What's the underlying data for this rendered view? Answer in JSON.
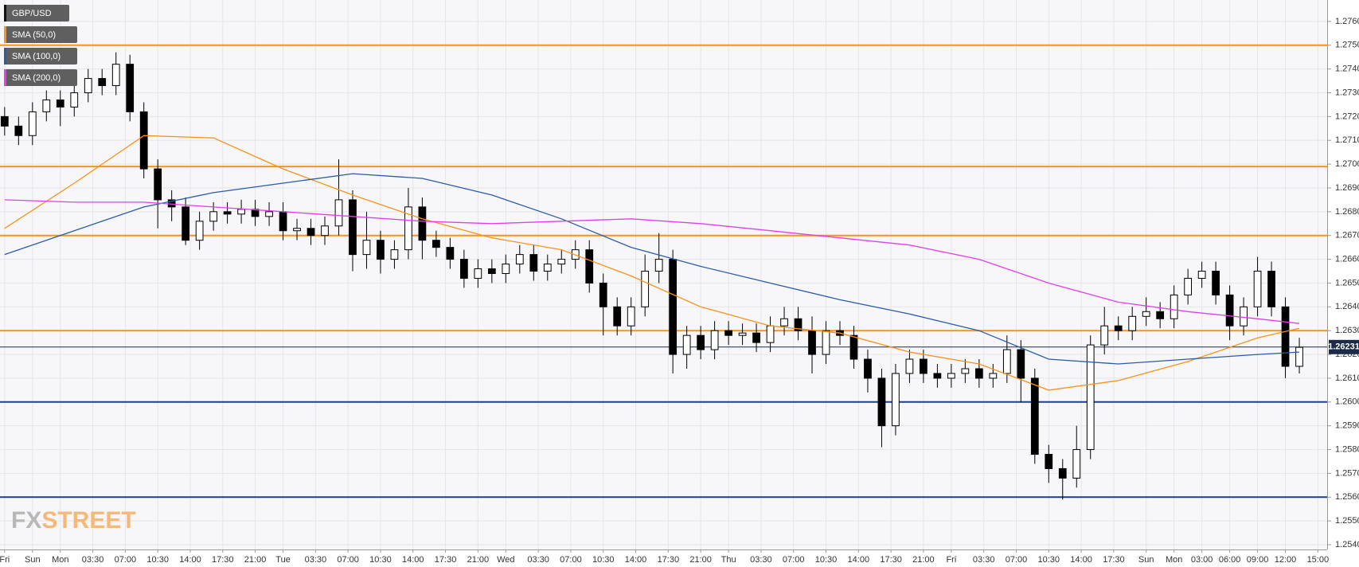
{
  "chart_data": {
    "type": "candlestick",
    "xlim": [
      -1,
      285
    ],
    "ylim": [
      1.2538,
      1.2769
    ],
    "grid": true,
    "xticks": [
      {
        "value": 0,
        "label": "Fri"
      },
      {
        "value": 6,
        "label": "Sun"
      },
      {
        "value": 12,
        "label": "Mon"
      },
      {
        "value": 19,
        "label": "03:30"
      },
      {
        "value": 26,
        "label": "07:00"
      },
      {
        "value": 33,
        "label": "10:30"
      },
      {
        "value": 40,
        "label": "14:00"
      },
      {
        "value": 47,
        "label": "17:30"
      },
      {
        "value": 54,
        "label": "21:00"
      },
      {
        "value": 60,
        "label": "Tue"
      },
      {
        "value": 67,
        "label": "03:30"
      },
      {
        "value": 74,
        "label": "07:00"
      },
      {
        "value": 81,
        "label": "10:30"
      },
      {
        "value": 88,
        "label": "14:00"
      },
      {
        "value": 95,
        "label": "17:30"
      },
      {
        "value": 102,
        "label": "21:00"
      },
      {
        "value": 108,
        "label": "Wed"
      },
      {
        "value": 115,
        "label": "03:30"
      },
      {
        "value": 122,
        "label": "07:00"
      },
      {
        "value": 129,
        "label": "10:30"
      },
      {
        "value": 136,
        "label": "14:00"
      },
      {
        "value": 143,
        "label": "17:30"
      },
      {
        "value": 150,
        "label": "21:00"
      },
      {
        "value": 156,
        "label": "Thu"
      },
      {
        "value": 163,
        "label": "03:30"
      },
      {
        "value": 170,
        "label": "07:00"
      },
      {
        "value": 177,
        "label": "10:30"
      },
      {
        "value": 184,
        "label": "14:00"
      },
      {
        "value": 191,
        "label": "17:30"
      },
      {
        "value": 198,
        "label": "21:00"
      },
      {
        "value": 204,
        "label": "Fri"
      },
      {
        "value": 211,
        "label": "03:30"
      },
      {
        "value": 218,
        "label": "07:00"
      },
      {
        "value": 225,
        "label": "10:30"
      },
      {
        "value": 232,
        "label": "14:00"
      },
      {
        "value": 239,
        "label": "17:30"
      },
      {
        "value": 246,
        "label": "Sun"
      },
      {
        "value": 252,
        "label": "Mon"
      },
      {
        "value": 258,
        "label": "03:00"
      },
      {
        "value": 264,
        "label": "06:00"
      },
      {
        "value": 270,
        "label": "09:00"
      },
      {
        "value": 276,
        "label": "12:00"
      },
      {
        "value": 283,
        "label": "15:00"
      }
    ],
    "yticks": [
      {
        "value": 1.254,
        "label": "1.2540"
      },
      {
        "value": 1.255,
        "label": "1.2550"
      },
      {
        "value": 1.256,
        "label": "1.2560"
      },
      {
        "value": 1.257,
        "label": "1.2570"
      },
      {
        "value": 1.258,
        "label": "1.2580"
      },
      {
        "value": 1.259,
        "label": "1.2590"
      },
      {
        "value": 1.26,
        "label": "1.2600"
      },
      {
        "value": 1.261,
        "label": "1.2610"
      },
      {
        "value": 1.262,
        "label": "1.2620"
      },
      {
        "value": 1.263,
        "label": "1.2630"
      },
      {
        "value": 1.264,
        "label": "1.2640"
      },
      {
        "value": 1.265,
        "label": "1.2650"
      },
      {
        "value": 1.266,
        "label": "1.2660"
      },
      {
        "value": 1.267,
        "label": "1.2670"
      },
      {
        "value": 1.268,
        "label": "1.2680"
      },
      {
        "value": 1.269,
        "label": "1.2690"
      },
      {
        "value": 1.27,
        "label": "1.2700"
      },
      {
        "value": 1.271,
        "label": "1.2710"
      },
      {
        "value": 1.272,
        "label": "1.2720"
      },
      {
        "value": 1.273,
        "label": "1.2730"
      },
      {
        "value": 1.274,
        "label": "1.2740"
      },
      {
        "value": 1.275,
        "label": "1.2750"
      },
      {
        "value": 1.276,
        "label": "1.2760"
      }
    ],
    "candles": {
      "name": "GBP/USD",
      "color": "#000000",
      "up_color": "#ffffff",
      "x": [
        0,
        3,
        6,
        9,
        12,
        15,
        18,
        21,
        24,
        27,
        30,
        33,
        36,
        39,
        42,
        45,
        48,
        51,
        54,
        57,
        60,
        63,
        66,
        69,
        72,
        75,
        78,
        81,
        84,
        87,
        90,
        93,
        96,
        99,
        102,
        105,
        108,
        111,
        114,
        117,
        120,
        123,
        126,
        129,
        132,
        135,
        138,
        141,
        144,
        147,
        150,
        153,
        156,
        159,
        162,
        165,
        168,
        171,
        174,
        177,
        180,
        183,
        186,
        189,
        192,
        195,
        198,
        201,
        204,
        207,
        210,
        213,
        216,
        219,
        222,
        225,
        228,
        231,
        234,
        237,
        240,
        243,
        246,
        249,
        252,
        255,
        258,
        261,
        264,
        267,
        270,
        273,
        276,
        279
      ],
      "open": [
        1.272,
        1.2716,
        1.2712,
        1.2722,
        1.2727,
        1.2724,
        1.273,
        1.2736,
        1.2733,
        1.2742,
        1.2722,
        1.2698,
        1.2685,
        1.2682,
        1.2668,
        1.2676,
        1.268,
        1.2679,
        1.2681,
        1.2678,
        1.268,
        1.2672,
        1.2673,
        1.267,
        1.2674,
        1.2685,
        1.2662,
        1.2668,
        1.266,
        1.2664,
        1.2682,
        1.2668,
        1.2665,
        1.266,
        1.2652,
        1.2656,
        1.2654,
        1.2658,
        1.2662,
        1.2655,
        1.2658,
        1.266,
        1.2664,
        1.265,
        1.264,
        1.2632,
        1.264,
        1.2655,
        1.266,
        1.262,
        1.2628,
        1.2622,
        1.263,
        1.2628,
        1.2629,
        1.2625,
        1.2632,
        1.2635,
        1.263,
        1.262,
        1.263,
        1.2628,
        1.2618,
        1.261,
        1.259,
        1.2612,
        1.2618,
        1.2612,
        1.261,
        1.2612,
        1.2614,
        1.261,
        1.2612,
        1.2622,
        1.261,
        1.2578,
        1.2572,
        1.2568,
        1.258,
        1.2624,
        1.2632,
        1.263,
        1.2636,
        1.2638,
        1.2635,
        1.2645,
        1.2652,
        1.2655,
        1.2645,
        1.2632,
        1.264,
        1.2655,
        1.264,
        1.2615
      ],
      "high": [
        1.2724,
        1.272,
        1.2726,
        1.2731,
        1.2731,
        1.2734,
        1.274,
        1.274,
        1.2747,
        1.2746,
        1.2726,
        1.2702,
        1.2689,
        1.2686,
        1.268,
        1.2684,
        1.2684,
        1.2685,
        1.2685,
        1.2684,
        1.2684,
        1.2677,
        1.2677,
        1.2678,
        1.2702,
        1.2689,
        1.268,
        1.2672,
        1.2668,
        1.269,
        1.2686,
        1.2672,
        1.2669,
        1.2664,
        1.266,
        1.266,
        1.2662,
        1.2666,
        1.2666,
        1.2662,
        1.2664,
        1.2668,
        1.2668,
        1.2654,
        1.2644,
        1.2644,
        1.2662,
        1.2671,
        1.2664,
        1.2632,
        1.2632,
        1.2634,
        1.2634,
        1.2633,
        1.2633,
        1.2636,
        1.264,
        1.264,
        1.2636,
        1.2634,
        1.2634,
        1.2632,
        1.2622,
        1.2614,
        1.2616,
        1.2622,
        1.2622,
        1.2616,
        1.2616,
        1.2618,
        1.2618,
        1.2616,
        1.2628,
        1.2626,
        1.2614,
        1.2582,
        1.2576,
        1.259,
        1.2628,
        1.264,
        1.2636,
        1.264,
        1.2644,
        1.2642,
        1.2649,
        1.2656,
        1.2659,
        1.2659,
        1.2649,
        1.2644,
        1.2661,
        1.2659,
        1.2644,
        1.2627
      ],
      "low": [
        1.2712,
        1.2708,
        1.2708,
        1.2718,
        1.2716,
        1.272,
        1.2726,
        1.2729,
        1.2729,
        1.2718,
        1.2694,
        1.2673,
        1.2676,
        1.2666,
        1.2664,
        1.2672,
        1.2675,
        1.2675,
        1.2674,
        1.2674,
        1.2668,
        1.2668,
        1.2666,
        1.2666,
        1.267,
        1.2655,
        1.2656,
        1.2654,
        1.2656,
        1.266,
        1.266,
        1.2661,
        1.2656,
        1.2648,
        1.2648,
        1.265,
        1.265,
        1.2654,
        1.2651,
        1.2651,
        1.2654,
        1.2656,
        1.2646,
        1.2628,
        1.2628,
        1.2628,
        1.2636,
        1.265,
        1.2612,
        1.2614,
        1.2618,
        1.2618,
        1.2624,
        1.2624,
        1.2621,
        1.2621,
        1.2628,
        1.2626,
        1.2612,
        1.2616,
        1.2624,
        1.2614,
        1.2604,
        1.2581,
        1.2586,
        1.2608,
        1.2608,
        1.2606,
        1.2606,
        1.2608,
        1.2606,
        1.2606,
        1.2608,
        1.26,
        1.2574,
        1.2566,
        1.2559,
        1.2564,
        1.2576,
        1.262,
        1.2626,
        1.2626,
        1.2632,
        1.2631,
        1.2631,
        1.2641,
        1.2648,
        1.2641,
        1.2626,
        1.2628,
        1.2636,
        1.2636,
        1.261,
        1.2612
      ],
      "close": [
        1.2716,
        1.2712,
        1.2722,
        1.2727,
        1.2724,
        1.273,
        1.2736,
        1.2733,
        1.2742,
        1.2722,
        1.2698,
        1.2685,
        1.2682,
        1.2668,
        1.2676,
        1.268,
        1.2679,
        1.2681,
        1.2678,
        1.268,
        1.2672,
        1.2673,
        1.267,
        1.2674,
        1.2685,
        1.2662,
        1.2668,
        1.266,
        1.2664,
        1.2682,
        1.2668,
        1.2665,
        1.266,
        1.2652,
        1.2656,
        1.2654,
        1.2658,
        1.2662,
        1.2655,
        1.2658,
        1.266,
        1.2664,
        1.265,
        1.264,
        1.2632,
        1.264,
        1.2655,
        1.266,
        1.262,
        1.2628,
        1.2622,
        1.263,
        1.2628,
        1.2629,
        1.2625,
        1.2632,
        1.2635,
        1.263,
        1.262,
        1.263,
        1.2628,
        1.2618,
        1.261,
        1.259,
        1.2612,
        1.2618,
        1.2612,
        1.261,
        1.2612,
        1.2614,
        1.261,
        1.2612,
        1.2622,
        1.261,
        1.2578,
        1.2572,
        1.2568,
        1.258,
        1.2624,
        1.2632,
        1.263,
        1.2636,
        1.2638,
        1.2635,
        1.2645,
        1.2652,
        1.2655,
        1.2645,
        1.2632,
        1.264,
        1.2655,
        1.264,
        1.2615,
        1.2623
      ]
    },
    "sma_x": [
      0,
      15,
      30,
      45,
      60,
      75,
      90,
      105,
      120,
      135,
      150,
      165,
      180,
      195,
      210,
      225,
      240,
      255,
      270,
      279
    ],
    "sma": [
      {
        "name": "SMA (50,0)",
        "color": "#f7931a",
        "values": [
          1.2673,
          1.2692,
          1.2712,
          1.2711,
          1.2698,
          1.2687,
          1.2677,
          1.2669,
          1.2664,
          1.2653,
          1.264,
          1.2632,
          1.2629,
          1.2621,
          1.2616,
          1.2605,
          1.2609,
          1.2617,
          1.2627,
          1.2631
        ]
      },
      {
        "name": "SMA (100,0)",
        "color": "#2a5ca8",
        "values": [
          1.2662,
          1.2672,
          1.2682,
          1.2688,
          1.2692,
          1.2696,
          1.2694,
          1.2687,
          1.2677,
          1.2665,
          1.2657,
          1.265,
          1.2643,
          1.2637,
          1.263,
          1.2618,
          1.2616,
          1.2618,
          1.262,
          1.2621
        ]
      },
      {
        "name": "SMA (200,0)",
        "color": "#e040e8",
        "values": [
          1.2685,
          1.2684,
          1.2684,
          1.2682,
          1.268,
          1.2678,
          1.2676,
          1.2675,
          1.2676,
          1.2677,
          1.2675,
          1.2672,
          1.2669,
          1.2666,
          1.266,
          1.265,
          1.2642,
          1.2638,
          1.2635,
          1.2633
        ]
      }
    ],
    "levels": [
      {
        "value": 1.275,
        "color": "#f7931a"
      },
      {
        "value": 1.2699,
        "color": "#f7931a"
      },
      {
        "value": 1.267,
        "color": "#f7931a"
      },
      {
        "value": 1.263,
        "color": "#f7931a"
      },
      {
        "value": 1.26,
        "color": "#1f3f8a"
      },
      {
        "value": 1.256,
        "color": "#1f3f8a"
      }
    ],
    "last_price": 1.26231,
    "last_price_color": "#1c2b4a",
    "logo": {
      "left": "FX",
      "right": "STREET"
    }
  }
}
